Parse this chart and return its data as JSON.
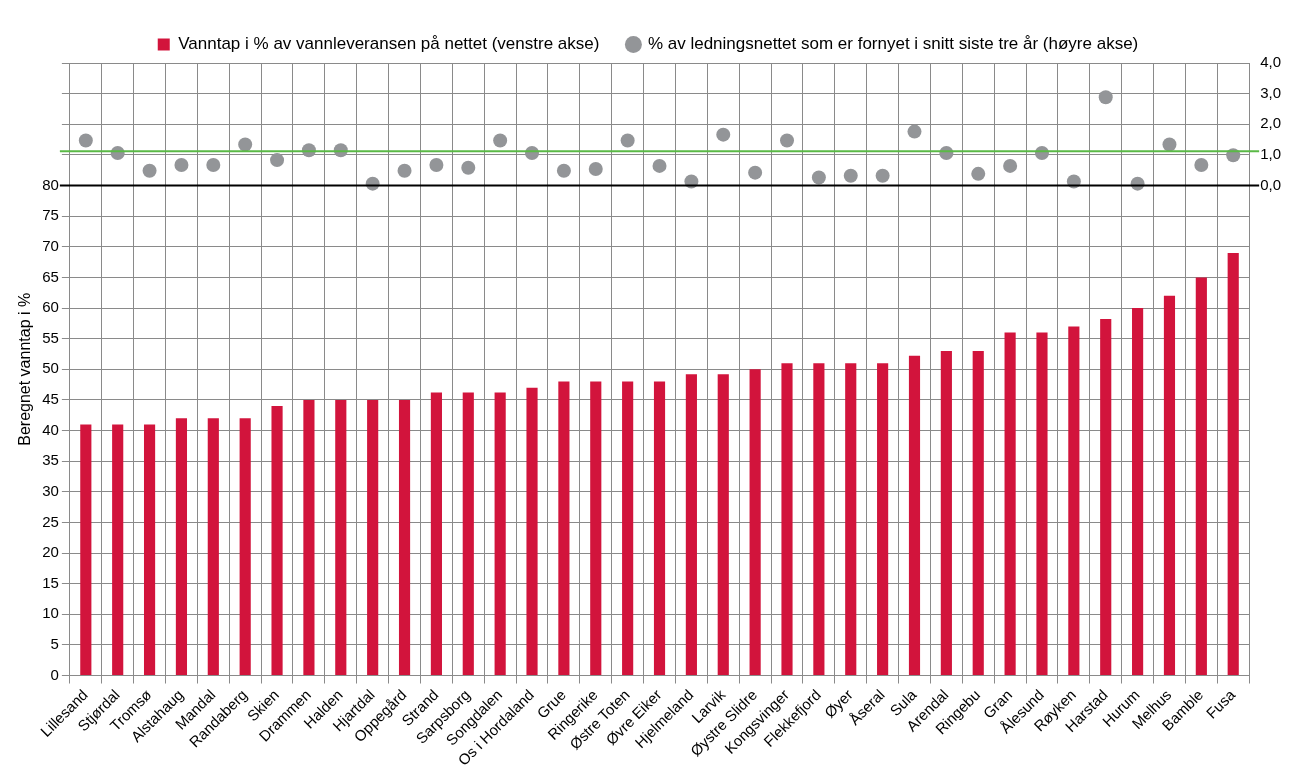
{
  "chart_data": {
    "type": "bar",
    "ylabel": "Beregnet vanntap i %",
    "categories": [
      "Lillesand",
      "Stjørdal",
      "Tromsø",
      "Alstahaug",
      "Mandal",
      "Randaberg",
      "Skien",
      "Drammen",
      "Halden",
      "Hjartdal",
      "Oppegård",
      "Strand",
      "Sarpsborg",
      "Songdalen",
      "Os i Hordaland",
      "Grue",
      "Ringerike",
      "Østre Toten",
      "Øvre Eiker",
      "Hjelmeland",
      "Larvik",
      "Øystre Slidre",
      "Kongsvinger",
      "Flekkefjord",
      "Øyer",
      "Åseral",
      "Sula",
      "Arendal",
      "Ringebu",
      "Gran",
      "Ålesund",
      "Røyken",
      "Harstad",
      "Hurum",
      "Melhus",
      "Bamble",
      "Fusa"
    ],
    "series": [
      {
        "name": "Vanntap i % av vannleveransen på nettet (venstre akse)",
        "color": "#d2143c",
        "values": [
          41,
          41,
          41,
          42,
          42,
          42,
          44,
          45,
          45,
          45,
          45,
          46.2,
          46.2,
          46.2,
          47,
          48,
          48,
          48,
          48,
          49.2,
          49.2,
          50,
          51,
          51,
          51,
          51,
          52.2,
          53,
          53,
          56,
          56,
          57,
          58.2,
          60,
          62,
          65,
          69
        ]
      },
      {
        "name": "% av ledningsnettet som er fornyet i snitt siste tre år (høyre akse)",
        "type": "scatter",
        "axis": "y2",
        "color": "#939598",
        "values": [
          1.47,
          1.06,
          0.48,
          0.67,
          0.67,
          1.34,
          0.83,
          1.15,
          1.15,
          0.06,
          0.48,
          0.67,
          0.58,
          1.47,
          1.06,
          0.48,
          0.54,
          1.47,
          0.64,
          0.13,
          1.66,
          0.42,
          1.47,
          0.26,
          0.32,
          0.32,
          1.76,
          1.06,
          0.38,
          0.64,
          1.06,
          0.13,
          2.88,
          0.06,
          1.34,
          0.67,
          0.99
        ]
      }
    ],
    "ylim": [
      0,
      100
    ],
    "yticks": [
      0,
      5,
      10,
      15,
      20,
      25,
      30,
      35,
      40,
      45,
      50,
      55,
      60,
      65,
      70,
      75,
      80,
      {
        "value": 85,
        "label": null
      },
      {
        "value": 90,
        "label": null
      },
      {
        "value": 95,
        "label": null
      },
      {
        "value": 100,
        "label": null
      }
    ],
    "y2lim": [
      -16,
      4
    ],
    "y2ticks": [
      {
        "value": 0,
        "label": "0,0"
      },
      {
        "value": 1,
        "label": "1,0"
      },
      {
        "value": 2,
        "label": "2,0"
      },
      {
        "value": 3,
        "label": "3,0"
      },
      {
        "value": 4,
        "label": "4,0"
      }
    ],
    "ref_lines": [
      {
        "axis": "y2",
        "value": 0,
        "color": "#000000"
      },
      {
        "axis": "y2",
        "value": 1.12,
        "color": "#5ab946"
      }
    ],
    "grid": true,
    "legend": "top",
    "marker": "circle"
  }
}
